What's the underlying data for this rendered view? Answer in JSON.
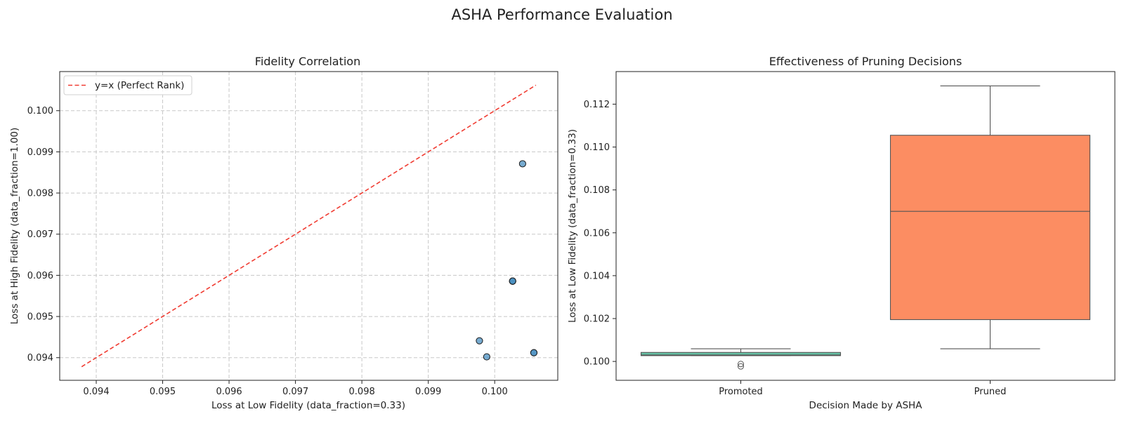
{
  "figure": {
    "title": "ASHA Performance Evaluation"
  },
  "chart_data": [
    {
      "type": "scatter",
      "title": "Fidelity Correlation",
      "xlabel": "Loss at Low Fidelity (data_fraction=0.33)",
      "ylabel": "Loss at High Fidelity (data_fraction=1.00)",
      "xlim": [
        0.09345,
        0.10095
      ],
      "ylim": [
        0.09345,
        0.10095
      ],
      "xticks": [
        "0.094",
        "0.095",
        "0.096",
        "0.097",
        "0.098",
        "0.099",
        "0.100"
      ],
      "yticks": [
        "0.094",
        "0.095",
        "0.096",
        "0.097",
        "0.098",
        "0.099",
        "0.100"
      ],
      "grid": true,
      "legend": {
        "position": "top-left",
        "entries": [
          "y=x (Perfect Rank)"
        ]
      },
      "reference_line": {
        "name": "y=x (Perfect Rank)",
        "x": [
          0.09378,
          0.10062
        ],
        "y": [
          0.09378,
          0.10062
        ],
        "color": "#f03c32",
        "style": "dashed"
      },
      "points": [
        {
          "x": 0.10042,
          "y": 0.09871
        },
        {
          "x": 0.10027,
          "y": 0.09586
        },
        {
          "x": 0.10027,
          "y": 0.09586
        },
        {
          "x": 0.10027,
          "y": 0.09586
        },
        {
          "x": 0.09977,
          "y": 0.09441
        },
        {
          "x": 0.09988,
          "y": 0.09402
        },
        {
          "x": 0.10059,
          "y": 0.09412
        },
        {
          "x": 0.10059,
          "y": 0.09412
        }
      ],
      "point_color": "#4a8fc0"
    },
    {
      "type": "box",
      "title": "Effectiveness of Pruning Decisions",
      "xlabel": "Decision Made by ASHA",
      "ylabel": "Loss at Low Fidelity (data_fraction=0.33)",
      "ylim": [
        0.09912,
        0.11352
      ],
      "yticks": [
        "0.100",
        "0.102",
        "0.104",
        "0.106",
        "0.108",
        "0.110",
        "0.112"
      ],
      "grid": false,
      "categories": [
        "Promoted",
        "Pruned"
      ],
      "boxes": [
        {
          "name": "Promoted",
          "whisker_low": 0.10027,
          "q1": 0.10027,
          "median": 0.1003,
          "q3": 0.10042,
          "whisker_high": 0.10059,
          "outliers": [
            0.09988,
            0.09977
          ],
          "color": "#66c2a5"
        },
        {
          "name": "Pruned",
          "whisker_low": 0.10059,
          "q1": 0.10195,
          "median": 0.107,
          "q3": 0.11055,
          "whisker_high": 0.11285,
          "outliers": [],
          "color": "#fc8d62"
        }
      ]
    }
  ]
}
